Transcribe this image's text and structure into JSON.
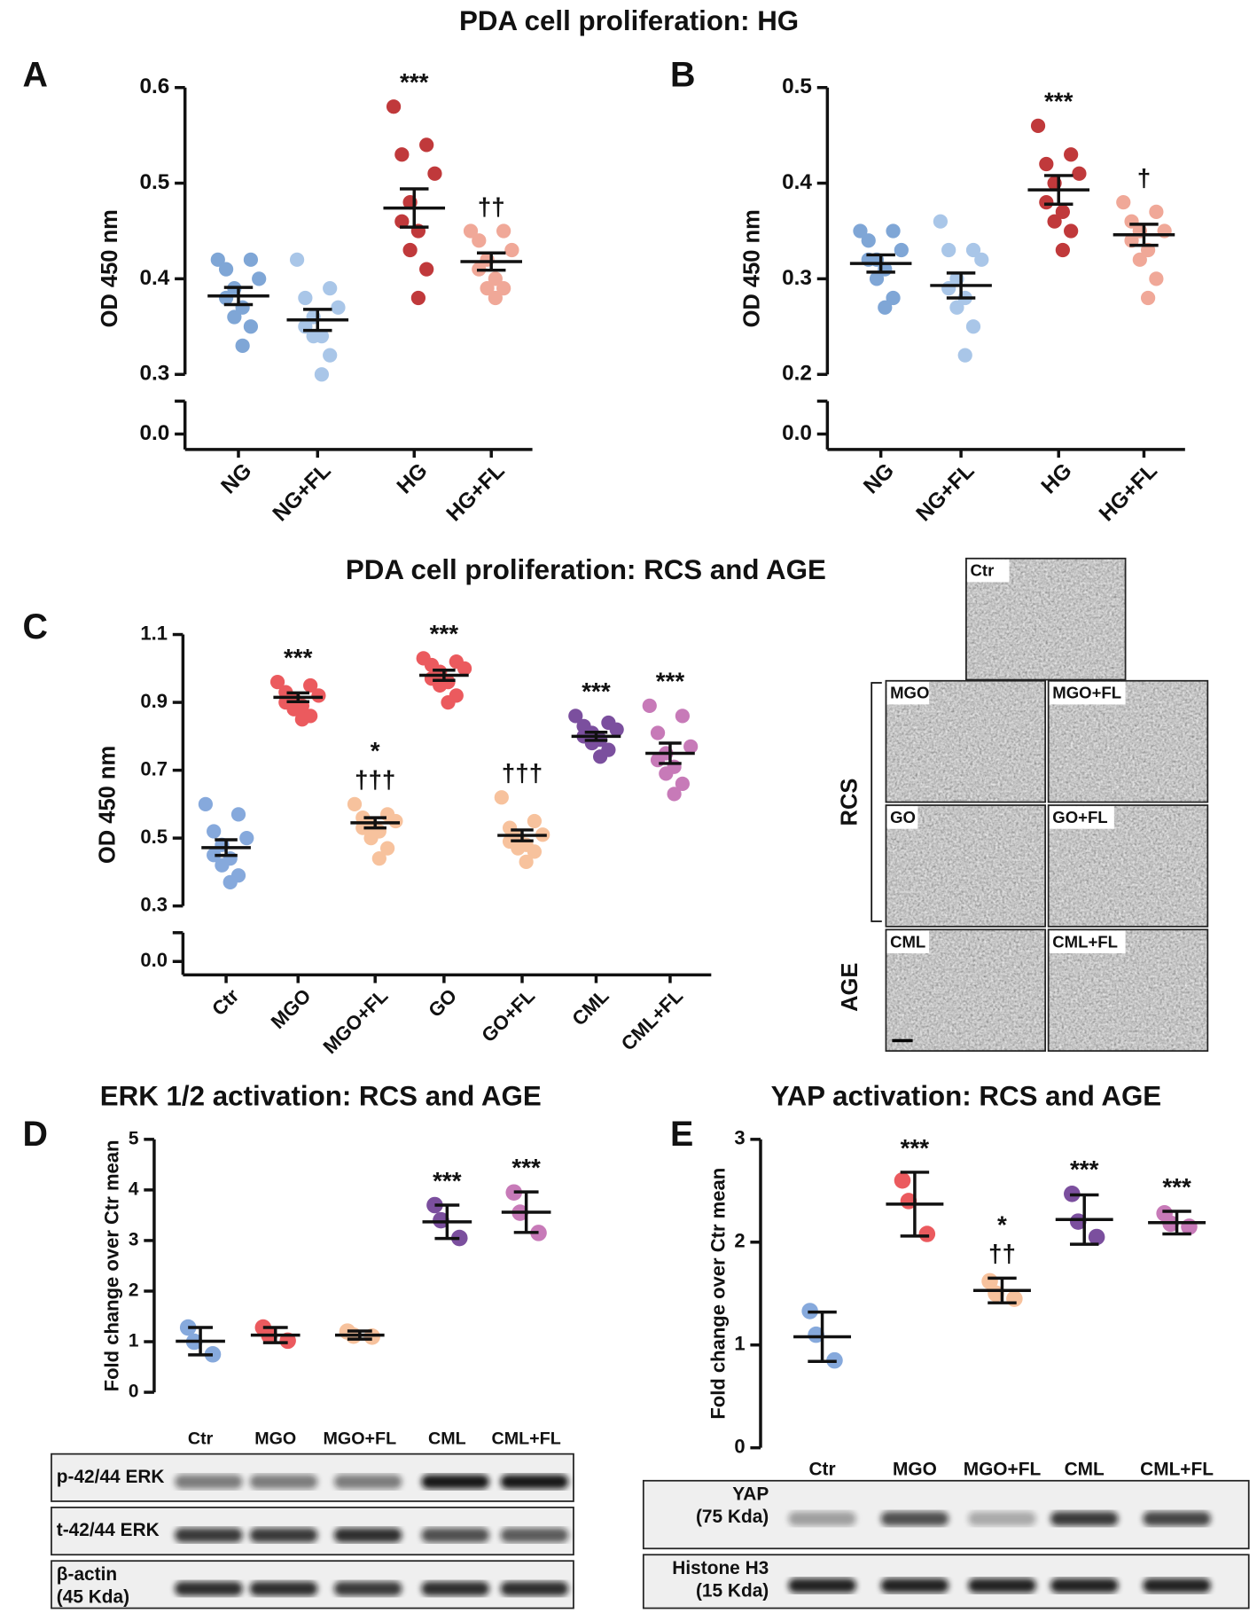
{
  "chart_data": [
    {
      "type": "dotplot",
      "ylabel": "OD 450 nm",
      "categories": [
        "NG",
        "NG+FL",
        "HG",
        "HG+FL"
      ],
      "colors": [
        "#7fa6d6",
        "#a9c6e8",
        "#c0393b",
        "#f0a898"
      ],
      "points": [
        [
          0.42,
          0.42,
          0.41,
          0.4,
          0.39,
          0.38,
          0.37,
          0.36,
          0.35,
          0.33
        ],
        [
          0.42,
          0.39,
          0.38,
          0.37,
          0.36,
          0.35,
          0.34,
          0.34,
          0.32,
          0.3
        ],
        [
          0.58,
          0.54,
          0.53,
          0.51,
          0.48,
          0.46,
          0.45,
          0.43,
          0.41,
          0.38
        ],
        [
          0.45,
          0.45,
          0.44,
          0.43,
          0.42,
          0.41,
          0.4,
          0.39,
          0.39,
          0.38
        ]
      ],
      "means": [
        0.382,
        0.357,
        0.474,
        0.418
      ],
      "errors": [
        0.009,
        0.011,
        0.02,
        0.009
      ],
      "annotations": [
        null,
        null,
        [
          "***"
        ],
        [
          "††"
        ]
      ],
      "ylim": [
        0.3,
        0.6
      ],
      "yticks": [
        {
          "value": 0,
          "label": "0.0"
        },
        0.3,
        0.4,
        0.5,
        0.6
      ],
      "axis_break": true
    },
    {
      "type": "dotplot",
      "ylabel": "OD 450 nm",
      "categories": [
        "NG",
        "NG+FL",
        "HG",
        "HG+FL"
      ],
      "colors": [
        "#7fa6d6",
        "#a9c6e8",
        "#c0393b",
        "#f0a898"
      ],
      "points": [
        [
          0.35,
          0.35,
          0.34,
          0.33,
          0.32,
          0.32,
          0.31,
          0.3,
          0.28,
          0.27
        ],
        [
          0.36,
          0.33,
          0.33,
          0.32,
          0.3,
          0.29,
          0.28,
          0.27,
          0.25,
          0.22
        ],
        [
          0.46,
          0.43,
          0.42,
          0.41,
          0.4,
          0.38,
          0.37,
          0.36,
          0.35,
          0.33
        ],
        [
          0.38,
          0.37,
          0.36,
          0.35,
          0.35,
          0.34,
          0.33,
          0.32,
          0.3,
          0.28
        ]
      ],
      "means": [
        0.316,
        0.293,
        0.393,
        0.346
      ],
      "errors": [
        0.009,
        0.013,
        0.015,
        0.011
      ],
      "annotations": [
        null,
        null,
        [
          "***"
        ],
        [
          "†"
        ]
      ],
      "ylim": [
        0.2,
        0.5
      ],
      "yticks": [
        {
          "value": 0,
          "label": "0.0"
        },
        0.2,
        0.3,
        0.4,
        0.5
      ],
      "axis_break": true
    },
    {
      "type": "dotplot",
      "ylabel": "OD 450 nm",
      "categories": [
        "Ctr",
        "MGO",
        "MGO+FL",
        "GO",
        "GO+FL",
        "CML",
        "CML+FL"
      ],
      "colors": [
        "#86a9dc",
        "#eb5a5e",
        "#f7c29d",
        "#eb5a5e",
        "#f7c29d",
        "#7b4f9e",
        "#c77ab8"
      ],
      "points": [
        [
          0.6,
          0.57,
          0.52,
          0.5,
          0.48,
          0.45,
          0.44,
          0.42,
          0.39,
          0.37
        ],
        [
          0.96,
          0.95,
          0.93,
          0.92,
          0.91,
          0.9,
          0.89,
          0.88,
          0.86,
          0.85
        ],
        [
          0.6,
          0.57,
          0.56,
          0.55,
          0.54,
          0.53,
          0.52,
          0.5,
          0.47,
          0.44
        ],
        [
          1.03,
          1.02,
          1.01,
          1.0,
          0.99,
          0.97,
          0.96,
          0.95,
          0.92,
          0.9
        ],
        [
          0.62,
          0.55,
          0.53,
          0.51,
          0.5,
          0.49,
          0.48,
          0.47,
          0.46,
          0.43
        ],
        [
          0.86,
          0.84,
          0.83,
          0.82,
          0.81,
          0.8,
          0.79,
          0.78,
          0.76,
          0.74
        ],
        [
          0.89,
          0.86,
          0.81,
          0.77,
          0.75,
          0.73,
          0.71,
          0.69,
          0.66,
          0.63
        ]
      ],
      "means": [
        0.472,
        0.915,
        0.545,
        0.98,
        0.508,
        0.8,
        0.75
      ],
      "errors": [
        0.023,
        0.013,
        0.015,
        0.015,
        0.016,
        0.012,
        0.03
      ],
      "annotations": [
        null,
        [
          "***"
        ],
        [
          "*",
          "†††"
        ],
        [
          "***"
        ],
        [
          "†††"
        ],
        [
          "***"
        ],
        [
          "***"
        ]
      ],
      "ylim": [
        0.3,
        1.1
      ],
      "yticks": [
        {
          "value": 0,
          "label": "0.0"
        },
        0.3,
        0.5,
        0.7,
        0.9,
        1.1
      ],
      "axis_break": true
    },
    {
      "type": "dotplot",
      "ylabel": "Fold change over Ctr mean",
      "categories": [
        "Ctr",
        "MGO",
        "MGO+FL",
        "CML",
        "CML+FL"
      ],
      "colors": [
        "#86a9dc",
        "#eb5a5e",
        "#f7c29d",
        "#7b4f9e",
        "#c77ab8"
      ],
      "points": [
        [
          1.28,
          1.0,
          0.75
        ],
        [
          1.28,
          1.12,
          1.02
        ],
        [
          1.2,
          1.12,
          1.1
        ],
        [
          3.7,
          3.4,
          3.05
        ],
        [
          3.95,
          3.55,
          3.15
        ]
      ],
      "means": [
        1.01,
        1.13,
        1.13,
        3.37,
        3.56
      ],
      "errors": [
        0.27,
        0.15,
        0.08,
        0.33,
        0.4
      ],
      "annotations": [
        null,
        null,
        null,
        [
          "***"
        ],
        [
          "***"
        ]
      ],
      "ylim": [
        0,
        5
      ],
      "yticks": [
        0,
        1,
        2,
        3,
        4,
        5
      ],
      "axis_break": false
    },
    {
      "type": "dotplot",
      "ylabel": "Fold change over Ctr mean",
      "categories": [
        "Ctr",
        "MGO",
        "MGO+FL",
        "CML",
        "CML+FL"
      ],
      "colors": [
        "#86a9dc",
        "#eb5a5e",
        "#f7c29d",
        "#7b4f9e",
        "#c77ab8"
      ],
      "points": [
        [
          1.33,
          1.1,
          0.85
        ],
        [
          2.6,
          2.4,
          2.08
        ],
        [
          1.62,
          1.5,
          1.45
        ],
        [
          2.47,
          2.2,
          2.05
        ],
        [
          2.28,
          2.18,
          2.15
        ]
      ],
      "means": [
        1.08,
        2.37,
        1.53,
        2.22,
        2.19
      ],
      "errors": [
        0.24,
        0.31,
        0.12,
        0.24,
        0.11
      ],
      "annotations": [
        null,
        [
          "***"
        ],
        [
          "*",
          "††"
        ],
        [
          "***"
        ],
        [
          "***"
        ]
      ],
      "ylim": [
        0,
        3
      ],
      "yticks": [
        0,
        1,
        2,
        3
      ],
      "axis_break": false
    }
  ],
  "figure": {
    "panel_letters": [
      "A",
      "B",
      "C",
      "D",
      "E"
    ],
    "headings": [
      "PDA cell proliferation: HG",
      "PDA cell proliferation: RCS and AGE",
      "ERK 1/2 activation: RCS and AGE",
      "YAP activation: RCS and AGE"
    ],
    "micrographs": {
      "images": [
        "Ctr",
        "MGO",
        "MGO+FL",
        "GO",
        "GO+FL",
        "CML",
        "CML+FL"
      ],
      "groups": [
        "RCS",
        "AGE"
      ]
    },
    "blots_erk": [
      {
        "label": "p-42/44 ERK"
      },
      {
        "label": "t-42/44 ERK"
      },
      {
        "label": "β-actin",
        "size": "(45 Kda)"
      }
    ],
    "blots_yap": [
      {
        "label": "YAP",
        "size": "(75 Kda)"
      },
      {
        "label": "Histone H3",
        "size": "(15 Kda)"
      }
    ]
  }
}
